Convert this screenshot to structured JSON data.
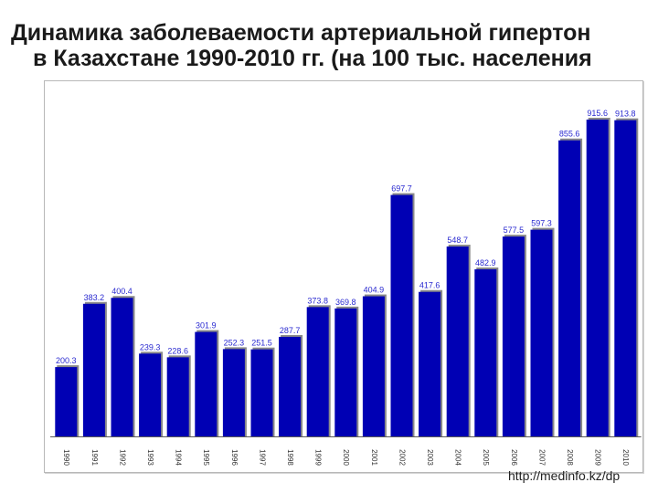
{
  "title": {
    "line1": "Динамика заболеваемости артериальной гипертон",
    "line2": "в Казахстане 1990-2010 гг.  (на 100 тыс. населения"
  },
  "source": "http://medinfo.kz/dp",
  "colors": {
    "bar": "#0000b4",
    "bar_shadow": "#8a8a8a",
    "value_label": "#2a2ad0",
    "axis": "#5a5a5a",
    "tick_label": "#333333"
  },
  "chart_data": {
    "type": "bar",
    "title": "Динамика заболеваемости артериальной гипертон в Казахстане 1990-2010 гг.  (на 100 тыс. населения",
    "categories": [
      "1990",
      "1991",
      "1992",
      "1993",
      "1994",
      "1995",
      "1996",
      "1997",
      "1998",
      "1999",
      "2000",
      "2001",
      "2002",
      "2003",
      "2004",
      "2005",
      "2006",
      "2007",
      "2008",
      "2009",
      "2010"
    ],
    "values": [
      200.3,
      383.2,
      400.4,
      239.3,
      228.6,
      301.9,
      252.3,
      251.5,
      287.7,
      373.8,
      369.8,
      404.9,
      697.7,
      417.6,
      548.7,
      482.9,
      577.5,
      597.3,
      855.6,
      915.6,
      913.8
    ],
    "value_labels": [
      "200.3",
      "383.2",
      "400.4",
      "239.3",
      "228.6",
      "301.9",
      "252.3",
      "251.5",
      "287.7",
      "373.8",
      "369.8",
      "404.9",
      "697.7",
      "417.6",
      "548.7",
      "482.9",
      "577.5",
      "597.3",
      "855.6",
      "915.6",
      "913.8"
    ],
    "xlabel": "",
    "ylabel": "",
    "ylim": [
      0,
      1000
    ],
    "grid": false,
    "legend": "none"
  }
}
